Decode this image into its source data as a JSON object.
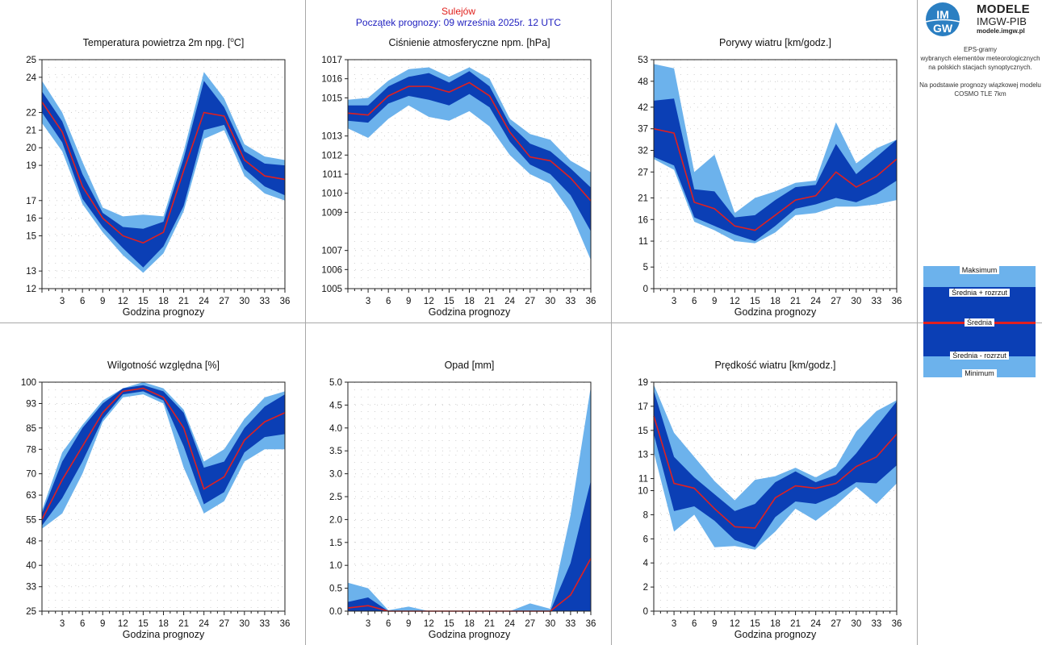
{
  "header": {
    "station": "Sulejów",
    "forecast_start": "Początek prognozy: 09 września 2025r. 12 UTC"
  },
  "logo": {
    "mark_top": "IM",
    "mark_bottom": "GW",
    "title": "MODELE",
    "subtitle": "IMGW-PIB",
    "url": "modele.imgw.pl"
  },
  "info": {
    "line1": "EPS-gramy",
    "line2": "wybranych elementów meteorologicznych",
    "line3": "na polskich stacjach  synoptycznych.",
    "line4": "Na podstawie prognozy wiązkowej modelu",
    "line5": "COSMO TLE 7km"
  },
  "legend": {
    "max": "Maksimum",
    "mean_plus": "Średnia + rozrzut",
    "mean": "Średnia",
    "mean_minus": "Średnia - rozrzut",
    "min": "Minimum"
  },
  "colors": {
    "outer_band": "#6cb2ec",
    "inner_band": "#0b3fb5",
    "mean_line": "#e02020",
    "station_text": "#e0201c",
    "start_text": "#2222c0"
  },
  "chart_data": [
    {
      "type": "area",
      "title": "Temperatura powietrza 2m npg. [°C]",
      "title_main": "Temperatura powietrza 2m npg. [",
      "title_sup": "o",
      "title_end": "C]",
      "xlabel": "Godzina prognozy",
      "x": [
        0,
        3,
        6,
        9,
        12,
        15,
        18,
        21,
        24,
        27,
        30,
        33,
        36
      ],
      "xticks": [
        3,
        6,
        9,
        12,
        15,
        18,
        21,
        24,
        27,
        30,
        33,
        36
      ],
      "ylim": [
        12,
        25
      ],
      "yticks": [
        12,
        13,
        15,
        16,
        17,
        19,
        20,
        21,
        22,
        24,
        25
      ],
      "max": [
        23.8,
        22.0,
        19.2,
        16.6,
        16.1,
        16.2,
        16.1,
        19.8,
        24.3,
        22.8,
        20.2,
        19.5,
        19.3
      ],
      "mean_plus": [
        23.2,
        21.5,
        18.5,
        16.3,
        15.5,
        15.4,
        15.8,
        19.4,
        23.8,
        22.3,
        19.8,
        19.1,
        19.0
      ],
      "mean": [
        22.6,
        20.9,
        17.8,
        16.0,
        15.0,
        14.6,
        15.2,
        18.7,
        22.0,
        21.8,
        19.3,
        18.4,
        18.2
      ],
      "mean_minus": [
        22.0,
        20.3,
        17.1,
        15.5,
        14.3,
        13.2,
        14.4,
        16.7,
        21.0,
        21.3,
        18.8,
        17.8,
        17.3
      ],
      "min": [
        21.4,
        19.8,
        16.8,
        15.2,
        13.9,
        12.9,
        14.0,
        16.4,
        20.5,
        21.0,
        18.4,
        17.4,
        17.0
      ]
    },
    {
      "type": "area",
      "title": "Ciśnienie atmosferyczne npm. [hPa]",
      "xlabel": "Godzina prognozy",
      "x": [
        0,
        3,
        6,
        9,
        12,
        15,
        18,
        21,
        24,
        27,
        30,
        33,
        36
      ],
      "xticks": [
        3,
        6,
        9,
        12,
        15,
        18,
        21,
        24,
        27,
        30,
        33,
        36
      ],
      "ylim": [
        1005,
        1017
      ],
      "yticks": [
        1005,
        1006,
        1007,
        1009,
        1010,
        1011,
        1012,
        1013,
        1015,
        1016,
        1017
      ],
      "max": [
        1014.9,
        1015.0,
        1015.9,
        1016.5,
        1016.6,
        1016.1,
        1016.6,
        1016.0,
        1013.9,
        1013.1,
        1012.8,
        1011.7,
        1011.1
      ],
      "mean_plus": [
        1014.6,
        1014.6,
        1015.6,
        1016.1,
        1016.3,
        1015.8,
        1016.4,
        1015.6,
        1013.6,
        1012.6,
        1012.2,
        1011.3,
        1010.3
      ],
      "mean": [
        1014.2,
        1014.1,
        1015.1,
        1015.6,
        1015.6,
        1015.3,
        1015.8,
        1015.1,
        1013.2,
        1011.9,
        1011.7,
        1010.8,
        1009.6
      ],
      "mean_minus": [
        1013.8,
        1013.7,
        1014.7,
        1015.1,
        1014.9,
        1014.6,
        1015.2,
        1014.5,
        1012.7,
        1011.5,
        1011.0,
        1009.9,
        1008.0
      ],
      "min": [
        1013.4,
        1012.9,
        1013.9,
        1014.6,
        1014.0,
        1013.8,
        1014.3,
        1013.5,
        1012.0,
        1011.0,
        1010.5,
        1009.0,
        1006.5
      ]
    },
    {
      "type": "area",
      "title": "Porywy wiatru [km/godz.]",
      "xlabel": "Godzina prognozy",
      "x": [
        0,
        3,
        6,
        9,
        12,
        15,
        18,
        21,
        24,
        27,
        30,
        33,
        36
      ],
      "xticks": [
        3,
        6,
        9,
        12,
        15,
        18,
        21,
        24,
        27,
        30,
        33,
        36
      ],
      "ylim": [
        0,
        53
      ],
      "yticks": [
        0,
        5,
        11,
        16,
        21,
        27,
        32,
        37,
        42,
        48,
        53
      ],
      "max": [
        52.0,
        51.0,
        27.0,
        31.0,
        17.5,
        21.0,
        22.5,
        24.5,
        25.0,
        38.5,
        29.0,
        32.5,
        34.5
      ],
      "mean_plus": [
        43.5,
        44.0,
        23.0,
        22.5,
        16.5,
        17.0,
        20.5,
        23.5,
        24.0,
        33.5,
        26.5,
        30.5,
        34.5
      ],
      "mean": [
        37.0,
        36.0,
        20.0,
        18.5,
        14.5,
        13.5,
        17.0,
        20.5,
        21.5,
        27.0,
        23.5,
        26.0,
        30.0
      ],
      "mean_minus": [
        30.5,
        28.5,
        16.5,
        14.5,
        12.5,
        11.0,
        14.5,
        18.5,
        19.5,
        21.0,
        20.0,
        22.0,
        25.0
      ],
      "min": [
        30.0,
        27.5,
        15.5,
        13.5,
        11.0,
        10.5,
        13.0,
        17.0,
        17.5,
        19.0,
        19.0,
        19.5,
        20.5
      ]
    },
    {
      "type": "area",
      "title": "Wilgotność względna [%]",
      "xlabel": "Godzina prognozy",
      "x": [
        0,
        3,
        6,
        9,
        12,
        15,
        18,
        21,
        24,
        27,
        30,
        33,
        36
      ],
      "xticks": [
        3,
        6,
        9,
        12,
        15,
        18,
        21,
        24,
        27,
        30,
        33,
        36
      ],
      "ylim": [
        25,
        100
      ],
      "yticks": [
        25,
        33,
        40,
        48,
        55,
        63,
        70,
        78,
        85,
        93,
        100
      ],
      "max": [
        58,
        77,
        86,
        94,
        98,
        100,
        98,
        91,
        74,
        78,
        88,
        95,
        97
      ],
      "mean_plus": [
        57,
        74,
        85,
        93,
        98,
        99,
        97,
        90,
        72,
        74,
        85,
        92,
        96
      ],
      "mean": [
        55,
        68,
        79,
        90,
        97,
        98,
        95,
        85,
        65,
        69,
        81,
        87,
        90
      ],
      "mean_minus": [
        53,
        62,
        74,
        88,
        96,
        97,
        94,
        79,
        60,
        64,
        77,
        82,
        83
      ],
      "min": [
        52,
        57,
        70,
        87,
        95,
        96,
        93,
        72,
        57,
        61,
        74,
        78,
        78
      ]
    },
    {
      "type": "area",
      "title": "Opad [mm]",
      "xlabel": "Godzina prognozy",
      "x": [
        0,
        3,
        6,
        9,
        12,
        15,
        18,
        21,
        24,
        27,
        30,
        33,
        36
      ],
      "xticks": [
        3,
        6,
        9,
        12,
        15,
        18,
        21,
        24,
        27,
        30,
        33,
        36
      ],
      "ylim": [
        0,
        5
      ],
      "yticks": [
        "0.0",
        "0.5",
        "1.0",
        "1.5",
        "2.0",
        "2.5",
        "3.0",
        "3.5",
        "4.0",
        "4.5",
        "5.0"
      ],
      "max": [
        0.62,
        0.5,
        0.02,
        0.1,
        0.0,
        0.0,
        0.0,
        0.0,
        0.0,
        0.17,
        0.05,
        2.1,
        4.9
      ],
      "mean_plus": [
        0.2,
        0.3,
        0.0,
        0.0,
        0.0,
        0.0,
        0.0,
        0.0,
        0.0,
        0.0,
        0.0,
        1.05,
        2.85
      ],
      "mean": [
        0.07,
        0.12,
        0.0,
        0.0,
        0.0,
        0.0,
        0.0,
        0.0,
        0.0,
        0.0,
        0.0,
        0.35,
        1.15
      ],
      "mean_minus": [
        0.0,
        0.0,
        0.0,
        0.0,
        0.0,
        0.0,
        0.0,
        0.0,
        0.0,
        0.0,
        0.0,
        0.0,
        0.0
      ],
      "min": [
        0.0,
        0.0,
        0.0,
        0.0,
        0.0,
        0.0,
        0.0,
        0.0,
        0.0,
        0.0,
        0.0,
        0.0,
        0.0
      ]
    },
    {
      "type": "area",
      "title": "Prędkość wiatru [km/godz.]",
      "xlabel": "Godzina prognozy",
      "x": [
        0,
        3,
        6,
        9,
        12,
        15,
        18,
        21,
        24,
        27,
        30,
        33,
        36
      ],
      "xticks": [
        3,
        6,
        9,
        12,
        15,
        18,
        21,
        24,
        27,
        30,
        33,
        36
      ],
      "ylim": [
        0,
        19
      ],
      "yticks": [
        0,
        2,
        4,
        6,
        8,
        10,
        11,
        13,
        15,
        17,
        19
      ],
      "max": [
        18.8,
        14.8,
        12.8,
        10.8,
        9.2,
        10.9,
        11.2,
        11.9,
        11.1,
        12.0,
        14.9,
        16.6,
        17.5
      ],
      "mean_plus": [
        18.3,
        12.8,
        11.1,
        9.7,
        8.3,
        8.9,
        10.7,
        11.6,
        10.7,
        11.3,
        13.1,
        15.3,
        17.4
      ],
      "mean": [
        16.2,
        10.6,
        10.2,
        8.5,
        7.0,
        6.9,
        9.4,
        10.4,
        10.2,
        10.6,
        12.0,
        12.8,
        14.7
      ],
      "mean_minus": [
        14.7,
        8.3,
        8.7,
        7.5,
        5.9,
        5.3,
        7.8,
        9.1,
        8.9,
        9.6,
        10.7,
        10.6,
        12.1
      ],
      "min": [
        13.2,
        6.6,
        8.0,
        5.3,
        5.4,
        5.1,
        6.6,
        8.5,
        7.5,
        8.8,
        10.3,
        8.9,
        10.6
      ]
    }
  ]
}
